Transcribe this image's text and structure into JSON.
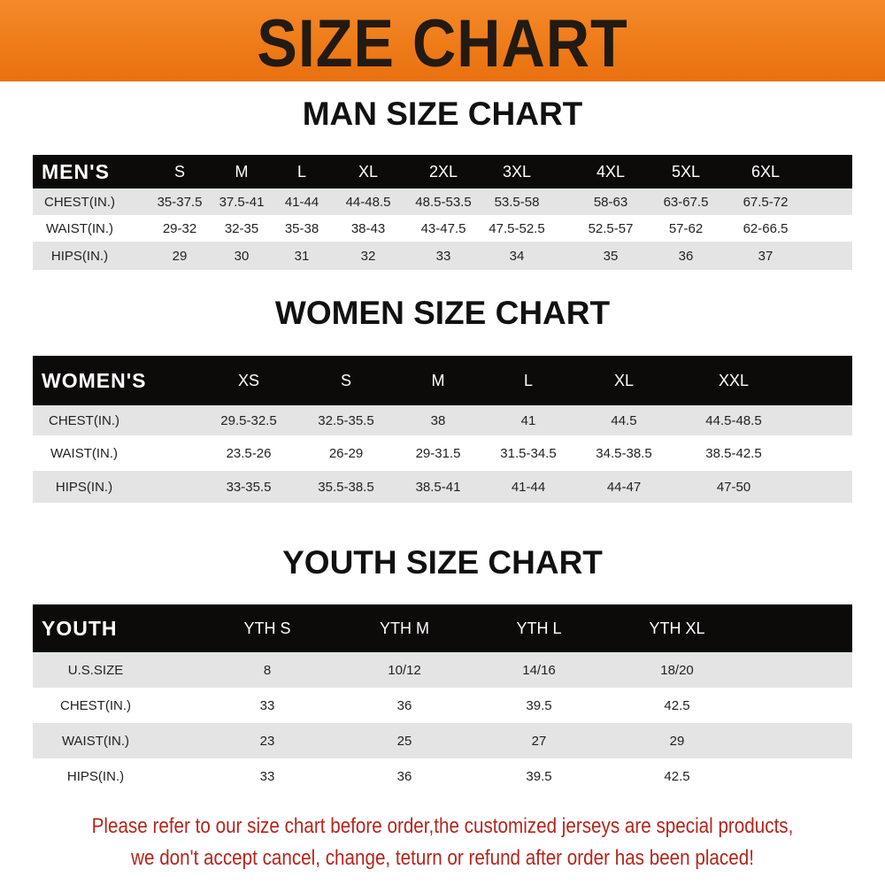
{
  "banner_title": "SIZE CHART",
  "men": {
    "title": "MAN SIZE CHART",
    "header": [
      "MEN'S",
      "S",
      "M",
      "L",
      "XL",
      "2XL",
      "3XL",
      "4XL",
      "5XL",
      "6XL"
    ],
    "rows": [
      [
        "CHEST(IN.)",
        "35-37.5",
        "37.5-41",
        "41-44",
        "44-48.5",
        "48.5-53.5",
        "53.5-58",
        "58-63",
        "63-67.5",
        "67.5-72"
      ],
      [
        "WAIST(IN.)",
        "29-32",
        "32-35",
        "35-38",
        "38-43",
        "43-47.5",
        "47.5-52.5",
        "52.5-57",
        "57-62",
        "62-66.5"
      ],
      [
        "HIPS(IN.)",
        "29",
        "30",
        "31",
        "32",
        "33",
        "34",
        "35",
        "36",
        "37"
      ]
    ]
  },
  "women": {
    "title": "WOMEN SIZE CHART",
    "header": [
      "WOMEN'S",
      "XS",
      "S",
      "M",
      "L",
      "XL",
      "XXL"
    ],
    "rows": [
      [
        "CHEST(IN.)",
        "29.5-32.5",
        "32.5-35.5",
        "38",
        "41",
        "44.5",
        "44.5-48.5"
      ],
      [
        "WAIST(IN.)",
        "23.5-26",
        "26-29",
        "29-31.5",
        "31.5-34.5",
        "34.5-38.5",
        "38.5-42.5"
      ],
      [
        "HIPS(IN.)",
        "33-35.5",
        "35.5-38.5",
        "38.5-41",
        "41-44",
        "44-47",
        "47-50"
      ]
    ]
  },
  "youth": {
    "title": "YOUTH SIZE CHART",
    "header": [
      "YOUTH",
      "YTH S",
      "YTH M",
      "YTH L",
      "YTH XL"
    ],
    "rows": [
      [
        "U.S.SIZE",
        "8",
        "10/12",
        "14/16",
        "18/20"
      ],
      [
        "CHEST(IN.)",
        "33",
        "36",
        "39.5",
        "42.5"
      ],
      [
        "WAIST(IN.)",
        "23",
        "25",
        "27",
        "29"
      ],
      [
        "HIPS(IN.)",
        "33",
        "36",
        "39.5",
        "42.5"
      ]
    ]
  },
  "notice": [
    "Please refer to our size chart before order,the customized jerseys are special products,",
    "we don't accept cancel, change, teturn or refund after order has been placed!"
  ],
  "colors": {
    "banner": "#ee7a17",
    "header_bg": "#0d0a0a",
    "stripe": "#e4e4e4",
    "notice": "#b3261e"
  }
}
